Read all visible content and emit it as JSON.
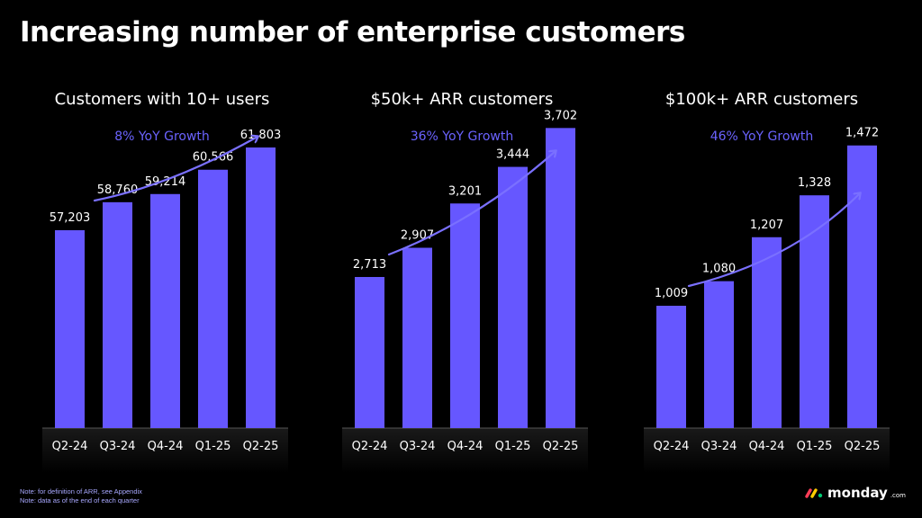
{
  "title": "Increasing number of enterprise customers",
  "colors": {
    "bar": "#6657ff",
    "growth_text": "#6b63ff",
    "arrow": "#7a70ff",
    "background": "#000000",
    "text": "#ffffff"
  },
  "chart_data": [
    {
      "type": "bar",
      "title": "Customers with 10+ users",
      "annotation": "8% YoY Growth",
      "categories": [
        "Q2-24",
        "Q3-24",
        "Q4-24",
        "Q1-25",
        "Q2-25"
      ],
      "values": [
        57203,
        58760,
        59214,
        60566,
        61803
      ],
      "value_labels": [
        "57,203",
        "58,760",
        "59,214",
        "60,566",
        "61,803"
      ]
    },
    {
      "type": "bar",
      "title": "$50k+ ARR customers",
      "annotation": "36% YoY Growth",
      "categories": [
        "Q2-24",
        "Q3-24",
        "Q4-24",
        "Q1-25",
        "Q2-25"
      ],
      "values": [
        2713,
        2907,
        3201,
        3444,
        3702
      ],
      "value_labels": [
        "2,713",
        "2,907",
        "3,201",
        "3,444",
        "3,702"
      ]
    },
    {
      "type": "bar",
      "title": "$100k+ ARR customers",
      "annotation": "46% YoY Growth",
      "categories": [
        "Q2-24",
        "Q3-24",
        "Q4-24",
        "Q1-25",
        "Q2-25"
      ],
      "values": [
        1009,
        1080,
        1207,
        1328,
        1472
      ],
      "value_labels": [
        "1,009",
        "1,080",
        "1,207",
        "1,328",
        "1,472"
      ]
    }
  ],
  "footnotes": [
    "Note: for definition of ARR, see Appendix",
    "Note: data as of the end of each quarter"
  ],
  "logo": {
    "word": "monday",
    "suffix": ".com",
    "icon": "monday-logo-icon",
    "colors": [
      "#ff3d57",
      "#ffcb00",
      "#00ca72"
    ]
  }
}
